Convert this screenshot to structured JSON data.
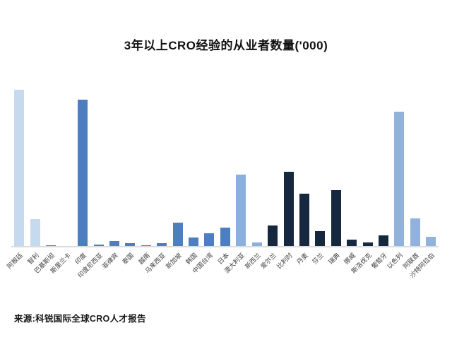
{
  "chart": {
    "title": "3年以上CRO经验的从业者数量('000)",
    "source": "来源:科锐国际全球CRO人才报告"
  },
  "chart_data": {
    "type": "bar",
    "title": "3年以上CRO经验的从业者数量('000)",
    "xlabel": "",
    "ylabel": "",
    "ylim": [
      0,
      25
    ],
    "grid": false,
    "y_axis_visible": false,
    "legend": "none",
    "source": "来源:科锐国际全球CRO人才报告",
    "categories": [
      "阿根廷",
      "智利",
      "巴基斯坦",
      "斯里兰卡",
      "印度",
      "印度尼西亚",
      "菲律宾",
      "泰国",
      "越南",
      "马来西亚",
      "新加坡",
      "韩国",
      "中国台湾",
      "日本",
      "澳大利亚",
      "新西兰",
      "爱尔兰",
      "比利时",
      "丹麦",
      "芬兰",
      "瑞典",
      "挪威",
      "斯洛伐克",
      "葡萄牙",
      "以色列",
      "阿联酋",
      "沙特阿拉伯"
    ],
    "values": [
      22.2,
      3.9,
      0.2,
      0.05,
      20.8,
      0.3,
      0.85,
      0.5,
      0.25,
      0.55,
      3.45,
      1.35,
      1.9,
      2.75,
      10.2,
      0.6,
      3.0,
      10.65,
      7.55,
      2.2,
      8.0,
      1.05,
      0.6,
      1.65,
      19.15,
      4.0,
      1.4
    ],
    "group_of_category": [
      "south-america",
      "south-america",
      "asia",
      "asia",
      "asia",
      "asia",
      "asia",
      "asia",
      "asia",
      "asia",
      "asia",
      "asia",
      "asia",
      "asia",
      "oceania",
      "oceania",
      "europe",
      "europe",
      "europe",
      "europe",
      "europe",
      "europe",
      "europe",
      "europe",
      "middle-east",
      "middle-east",
      "middle-east"
    ],
    "group_colors": {
      "south-america": "#c5d9ef",
      "asia": "#4d7fc0",
      "oceania": "#8cb0de",
      "europe": "#16283f",
      "middle-east": "#90b2dd"
    }
  }
}
